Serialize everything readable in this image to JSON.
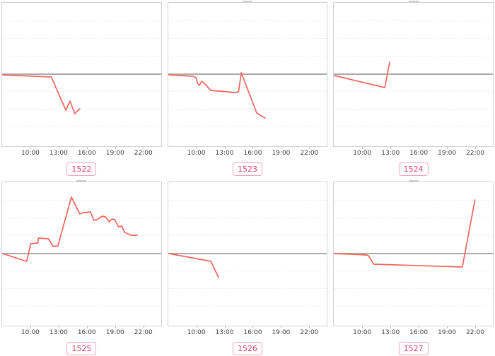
{
  "colors": {
    "series_line": "#f4635c",
    "zero_line": "#9b9b9b",
    "gridline": "#ededed",
    "plot_border": "#d2d2d2",
    "badge_text": "#d6496b",
    "badge_border": "#f2a8bc",
    "tick_label_text": "#3d3d3d",
    "clipped_title_fragment": "#bdbdbd"
  },
  "x_axis": {
    "tick_labels": [
      "10:00",
      "13:00",
      "16:00",
      "19:00",
      "22:00"
    ],
    "tick_hours": [
      10,
      13,
      16,
      19,
      22
    ],
    "range_hours": [
      7,
      24
    ]
  },
  "chart_data": [
    {
      "type": "line",
      "label": "1522",
      "x_ticks": [
        "10:00",
        "13:00",
        "16:00",
        "19:00",
        "22:00"
      ],
      "x_range_hours": [
        7,
        24
      ],
      "y_axis": "unlabeled, relative units; solid gray baseline at 0",
      "ylim": [
        -101,
        101
      ],
      "baseline": 0,
      "has_clipped_title": false,
      "points": [
        [
          7,
          -1
        ],
        [
          12.2,
          -4
        ],
        [
          13.75,
          -51
        ],
        [
          14.2,
          -38
        ],
        [
          14.7,
          -56
        ],
        [
          15.25,
          -49
        ]
      ]
    },
    {
      "type": "line",
      "label": "1523",
      "x_ticks": [
        "10:00",
        "13:00",
        "16:00",
        "19:00",
        "22:00"
      ],
      "x_range_hours": [
        7,
        24
      ],
      "y_axis": "unlabeled, relative units; solid gray baseline at 0",
      "ylim": [
        -101,
        101
      ],
      "baseline": 0,
      "has_clipped_title": true,
      "points": [
        [
          7,
          -1
        ],
        [
          9.6,
          -3
        ],
        [
          9.9,
          -5
        ],
        [
          10.05,
          -13
        ],
        [
          10.25,
          -16
        ],
        [
          10.5,
          -10
        ],
        [
          10.7,
          -12
        ],
        [
          11.5,
          -23
        ],
        [
          14.1,
          -26
        ],
        [
          14.45,
          -25
        ],
        [
          14.75,
          2
        ],
        [
          16.4,
          -55
        ],
        [
          17.0,
          -60
        ],
        [
          17.3,
          -62
        ]
      ]
    },
    {
      "type": "line",
      "label": "1524",
      "x_ticks": [
        "10:00",
        "13:00",
        "16:00",
        "19:00",
        "22:00"
      ],
      "x_range_hours": [
        7,
        24
      ],
      "y_axis": "unlabeled, relative units; solid gray baseline at 0",
      "ylim": [
        -101,
        101
      ],
      "baseline": 0,
      "has_clipped_title": true,
      "points": [
        [
          7,
          -2
        ],
        [
          12.4,
          -19
        ],
        [
          12.9,
          17
        ]
      ]
    },
    {
      "type": "line",
      "label": "1525",
      "x_ticks": [
        "10:00",
        "13:00",
        "16:00",
        "19:00",
        "22:00"
      ],
      "x_range_hours": [
        7,
        24
      ],
      "y_axis": "unlabeled, relative units; solid gray baseline at 0",
      "ylim": [
        -101,
        101
      ],
      "baseline": 0,
      "has_clipped_title": true,
      "points": [
        [
          7,
          0
        ],
        [
          9.55,
          -11
        ],
        [
          10.0,
          14
        ],
        [
          10.75,
          15
        ],
        [
          10.8,
          22
        ],
        [
          11.9,
          21
        ],
        [
          12.4,
          10
        ],
        [
          12.9,
          11
        ],
        [
          14.35,
          80
        ],
        [
          15.25,
          56
        ],
        [
          15.6,
          58
        ],
        [
          16.4,
          59
        ],
        [
          16.75,
          47
        ],
        [
          17.1,
          48
        ],
        [
          17.65,
          53
        ],
        [
          18.0,
          52
        ],
        [
          18.4,
          45
        ],
        [
          18.7,
          49
        ],
        [
          19.0,
          48
        ],
        [
          19.4,
          38
        ],
        [
          19.75,
          39
        ],
        [
          20.05,
          30
        ],
        [
          20.4,
          28
        ],
        [
          20.7,
          26
        ],
        [
          21.4,
          26
        ]
      ]
    },
    {
      "type": "line",
      "label": "1526",
      "x_ticks": [
        "10:00",
        "13:00",
        "16:00",
        "19:00",
        "22:00"
      ],
      "x_range_hours": [
        7,
        24
      ],
      "y_axis": "unlabeled, relative units; solid gray baseline at 0",
      "ylim": [
        -101,
        101
      ],
      "baseline": 0,
      "has_clipped_title": false,
      "points": [
        [
          7,
          0
        ],
        [
          11.5,
          -11
        ],
        [
          12.3,
          -34
        ]
      ]
    },
    {
      "type": "line",
      "label": "1527",
      "x_ticks": [
        "10:00",
        "13:00",
        "16:00",
        "19:00",
        "22:00"
      ],
      "x_range_hours": [
        7,
        24
      ],
      "y_axis": "unlabeled, relative units; solid gray baseline at 0",
      "ylim": [
        -101,
        101
      ],
      "baseline": 0,
      "has_clipped_title": true,
      "points": [
        [
          7,
          0
        ],
        [
          10.45,
          -2
        ],
        [
          10.65,
          -3
        ],
        [
          11.2,
          -15
        ],
        [
          20.7,
          -19
        ],
        [
          22.05,
          76
        ]
      ]
    }
  ],
  "layout_hints": {
    "grid": "2 rows x 3 columns of sparkline charts",
    "gridlines": "faint dotted horizontal only",
    "legend": "none",
    "badge_position": "centered below each chart"
  }
}
